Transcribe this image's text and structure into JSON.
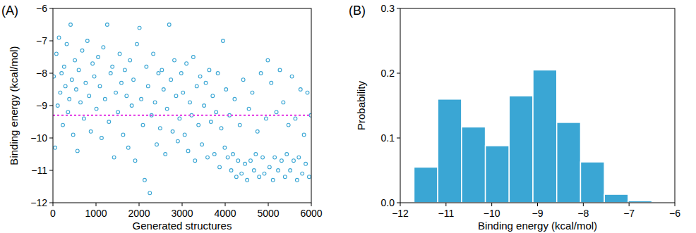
{
  "chart_data": [
    {
      "type": "scatter",
      "title": "(A)",
      "x_label": "Generated structures",
      "y_label": "Binding energy (kcal/mol)",
      "color": "#3aa6d4",
      "marker": "circle",
      "x": [
        20,
        50,
        80,
        110,
        140,
        170,
        200,
        230,
        260,
        290,
        320,
        350,
        380,
        410,
        440,
        470,
        510,
        540,
        570,
        600,
        640,
        680,
        720,
        760,
        800,
        840,
        880,
        920,
        960,
        1010,
        1050,
        1090,
        1130,
        1170,
        1210,
        1260,
        1300,
        1340,
        1380,
        1420,
        1460,
        1510,
        1550,
        1590,
        1630,
        1670,
        1710,
        1750,
        1790,
        1830,
        1870,
        1910,
        1950,
        2010,
        2050,
        2090,
        2130,
        2170,
        2210,
        2250,
        2290,
        2330,
        2370,
        2410,
        2450,
        2490,
        2530,
        2570,
        2610,
        2650,
        2700,
        2740,
        2780,
        2820,
        2860,
        2900,
        2940,
        2980,
        3020,
        3060,
        3100,
        3140,
        3180,
        3220,
        3260,
        3300,
        3340,
        3380,
        3420,
        3460,
        3510,
        3550,
        3590,
        3630,
        3670,
        3710,
        3750,
        3790,
        3830,
        3870,
        3910,
        3950,
        3990,
        4020,
        4060,
        4100,
        4140,
        4180,
        4220,
        4260,
        4300,
        4340,
        4380,
        4420,
        4460,
        4510,
        4550,
        4590,
        4630,
        4670,
        4710,
        4750,
        4790,
        4830,
        4870,
        4910,
        4950,
        4990,
        5030,
        5070,
        5110,
        5150,
        5190,
        5230,
        5270,
        5310,
        5350,
        5390,
        5430,
        5470,
        5510,
        5550,
        5590,
        5630,
        5670,
        5710,
        5750,
        5790,
        5830,
        5870,
        5910,
        5950,
        5990
      ],
      "values": [
        -8.1,
        -10.3,
        -7.4,
        -9.0,
        -6.9,
        -8.6,
        -8.0,
        -9.6,
        -7.8,
        -8.4,
        -7.1,
        -9.2,
        -8.8,
        -6.5,
        -8.2,
        -9.9,
        -7.6,
        -8.5,
        -10.4,
        -7.9,
        -8.9,
        -7.3,
        -9.4,
        -8.3,
        -7.0,
        -8.7,
        -9.8,
        -7.7,
        -8.1,
        -9.1,
        -7.5,
        -8.4,
        -10.0,
        -7.2,
        -8.8,
        -6.5,
        -9.5,
        -8.0,
        -7.8,
        -10.6,
        -8.6,
        -9.2,
        -7.4,
        -8.3,
        -9.9,
        -7.9,
        -8.7,
        -10.3,
        -7.6,
        -9.0,
        -8.2,
        -10.7,
        -7.1,
        -6.6,
        -8.8,
        -9.6,
        -11.3,
        -7.8,
        -8.4,
        -11.7,
        -9.3,
        -7.4,
        -8.9,
        -10.2,
        -8.0,
        -9.7,
        -7.9,
        -8.5,
        -10.5,
        -9.1,
        -6.5,
        -8.2,
        -9.8,
        -7.6,
        -8.7,
        -10.1,
        -9.4,
        -8.0,
        -8.6,
        -9.9,
        -7.7,
        -10.4,
        -8.9,
        -9.3,
        -7.5,
        -10.7,
        -8.4,
        -9.6,
        -8.1,
        -10.2,
        -9.0,
        -8.3,
        -10.6,
        -7.9,
        -9.5,
        -8.7,
        -10.5,
        -9.2,
        -8.0,
        -10.9,
        -9.7,
        -7.0,
        -10.3,
        -8.5,
        -10.6,
        -9.3,
        -11.0,
        -10.5,
        -8.8,
        -11.2,
        -10.7,
        -9.6,
        -11.1,
        -8.2,
        -10.8,
        -11.3,
        -9.1,
        -10.7,
        -8.6,
        -11.0,
        -10.5,
        -9.8,
        -11.2,
        -8.0,
        -10.6,
        -11.1,
        -9.4,
        -7.6,
        -10.9,
        -8.3,
        -11.3,
        -10.6,
        -9.2,
        -11.0,
        -7.9,
        -10.7,
        -8.9,
        -11.2,
        -10.5,
        -9.6,
        -11.0,
        -8.1,
        -10.7,
        -9.4,
        -11.3,
        -10.6,
        -8.5,
        -11.1,
        -9.9,
        -10.8,
        -8.6,
        -11.2,
        -9.3
      ],
      "reference_line": {
        "value": -9.3,
        "color": "#e64ce6",
        "line_style": "dashed"
      },
      "xlim": [
        0,
        6000
      ],
      "ylim": [
        -12,
        -6
      ],
      "xticks": [
        0,
        1000,
        2000,
        3000,
        4000,
        5000,
        6000
      ],
      "yticks": [
        {
          "value": -12,
          "label": "−12"
        },
        {
          "value": -11,
          "label": "−11"
        },
        {
          "value": -10,
          "label": "−10"
        },
        {
          "value": -9,
          "label": "−9"
        },
        {
          "value": -8,
          "label": "−8"
        },
        {
          "value": -7,
          "label": "−7"
        },
        {
          "value": -6,
          "label": "−6"
        }
      ]
    },
    {
      "type": "histogram",
      "title": "(B)",
      "x_label": "Binding energy (kcal/mol)",
      "y_label": "Probability",
      "color": "#3aa6d4",
      "bins": [
        -11.7,
        -11.18,
        -10.66,
        -10.14,
        -9.62,
        -9.1,
        -8.58,
        -8.06,
        -7.54,
        -7.02,
        -6.5
      ],
      "values": [
        0.055,
        0.16,
        0.117,
        0.088,
        0.165,
        0.205,
        0.124,
        0.063,
        0.013,
        0.003
      ],
      "xlim": [
        -12,
        -6
      ],
      "ylim": [
        0,
        0.3
      ],
      "xticks": [
        {
          "value": -12,
          "label": "−12"
        },
        {
          "value": -11,
          "label": "−11"
        },
        {
          "value": -10,
          "label": "−10"
        },
        {
          "value": -9,
          "label": "−9"
        },
        {
          "value": -8,
          "label": "−8"
        },
        {
          "value": -7,
          "label": "−7"
        },
        {
          "value": -6,
          "label": "−6"
        }
      ],
      "yticks": [
        {
          "value": 0,
          "label": "0.0"
        },
        0.1,
        0.2,
        0.3
      ]
    }
  ]
}
